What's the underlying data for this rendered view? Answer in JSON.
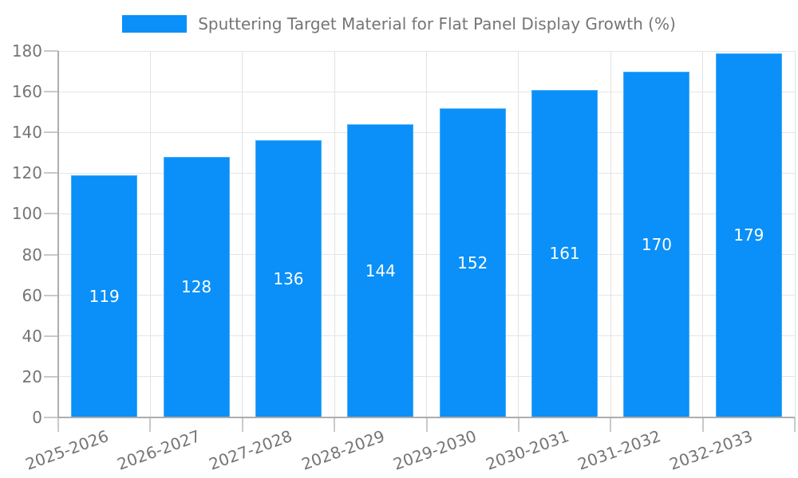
{
  "chart_data": {
    "type": "bar",
    "title": "Sputtering Target Material for Flat Panel Display Growth (%)",
    "legend": [
      "Sputtering Target Material for Flat Panel Display Growth (%)"
    ],
    "legend_position": "top-center",
    "categories": [
      "2025-2026",
      "2026-2027",
      "2027-2028",
      "2028-2029",
      "2029-2030",
      "2030-2031",
      "2031-2032",
      "2032-2033"
    ],
    "values": [
      119,
      128,
      136,
      144,
      152,
      161,
      170,
      179
    ],
    "xlabel": "",
    "ylabel": "",
    "ylim": [
      0,
      180
    ],
    "y_ticks": [
      0,
      20,
      40,
      60,
      80,
      100,
      120,
      140,
      160,
      180
    ],
    "grid": true,
    "bar_labels_shown": true,
    "x_label_rotation_deg": -20
  },
  "colors": {
    "bar": "#0a90f8",
    "bar_value_label": "#ffffff",
    "axis_line": "#adadad",
    "tick_mark": "#c9c9c9",
    "gridline": "#e5e5e5",
    "text": "#757575",
    "background": "#ffffff"
  }
}
